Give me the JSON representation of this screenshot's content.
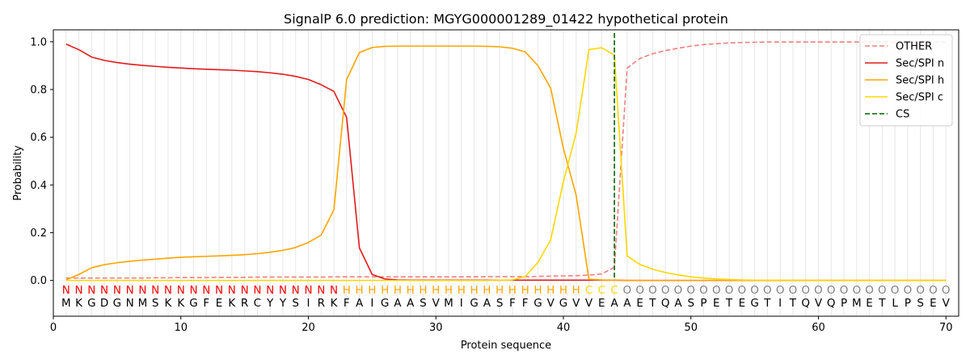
{
  "chart_data": {
    "type": "line",
    "title": "SignalP 6.0 prediction: MGYG000001289_01422 hypothetical protein",
    "xlabel": "Protein sequence",
    "ylabel": "Probability",
    "xlim": [
      0,
      71
    ],
    "ylim": [
      -0.15,
      1.05
    ],
    "xticks": [
      0,
      10,
      20,
      30,
      40,
      50,
      60,
      70
    ],
    "yticks": [
      0.0,
      0.2,
      0.4,
      0.6,
      0.8,
      1.0
    ],
    "ytick_labels": [
      "0.0",
      "0.2",
      "0.4",
      "0.6",
      "0.8",
      "1.0"
    ],
    "grid": "vertical lines at each residue position",
    "legend_position": "top-right",
    "sequence": [
      "M",
      "K",
      "G",
      "D",
      "G",
      "N",
      "M",
      "S",
      "K",
      "K",
      "G",
      "F",
      "E",
      "K",
      "R",
      "C",
      "Y",
      "Y",
      "S",
      "I",
      "R",
      "K",
      "F",
      "A",
      "I",
      "G",
      "A",
      "A",
      "S",
      "V",
      "M",
      "I",
      "G",
      "A",
      "S",
      "F",
      "F",
      "G",
      "V",
      "G",
      "V",
      "V",
      "E",
      "A",
      "A",
      "E",
      "T",
      "Q",
      "A",
      "S",
      "P",
      "E",
      "T",
      "E",
      "G",
      "T",
      "I",
      "T",
      "Q",
      "V",
      "Q",
      "P",
      "M",
      "E",
      "T",
      "L",
      "P",
      "S",
      "E",
      "V"
    ],
    "region_labels": [
      "N",
      "N",
      "N",
      "N",
      "N",
      "N",
      "N",
      "N",
      "N",
      "N",
      "N",
      "N",
      "N",
      "N",
      "N",
      "N",
      "N",
      "N",
      "N",
      "N",
      "N",
      "N",
      "H",
      "H",
      "H",
      "H",
      "H",
      "H",
      "H",
      "H",
      "H",
      "H",
      "H",
      "H",
      "H",
      "H",
      "H",
      "H",
      "H",
      "H",
      "H",
      "C",
      "C",
      "C",
      "O",
      "O",
      "O",
      "O",
      "O",
      "O",
      "O",
      "O",
      "O",
      "O",
      "O",
      "O",
      "O",
      "O",
      "O",
      "O",
      "O",
      "O",
      "O",
      "O",
      "O",
      "O",
      "O",
      "O",
      "O",
      "O"
    ],
    "region_colors": {
      "N": "#ff0000",
      "H": "#ffa500",
      "C": "#ffd700",
      "O": "#808080"
    },
    "cs_position": 44,
    "series": [
      {
        "name": "OTHER",
        "color": "#f08080",
        "style": "dashed",
        "values": [
          0.01,
          0.01,
          0.01,
          0.01,
          0.01,
          0.01,
          0.01,
          0.011,
          0.011,
          0.012,
          0.012,
          0.012,
          0.013,
          0.013,
          0.013,
          0.014,
          0.014,
          0.014,
          0.014,
          0.014,
          0.014,
          0.015,
          0.015,
          0.015,
          0.015,
          0.015,
          0.015,
          0.015,
          0.015,
          0.015,
          0.015,
          0.015,
          0.015,
          0.016,
          0.016,
          0.016,
          0.016,
          0.017,
          0.018,
          0.019,
          0.02,
          0.022,
          0.027,
          0.055,
          0.89,
          0.93,
          0.95,
          0.963,
          0.973,
          0.982,
          0.988,
          0.992,
          0.995,
          0.997,
          0.998,
          0.999,
          0.999,
          0.999,
          0.999,
          0.999,
          0.999,
          0.999,
          0.999,
          0.999,
          0.999,
          0.999,
          0.999,
          0.999,
          0.999,
          0.999
        ]
      },
      {
        "name": "Sec/SPI n",
        "color": "#e31a1c",
        "style": "solid",
        "values": [
          0.99,
          0.967,
          0.936,
          0.922,
          0.913,
          0.906,
          0.901,
          0.897,
          0.893,
          0.89,
          0.887,
          0.885,
          0.883,
          0.881,
          0.878,
          0.875,
          0.87,
          0.864,
          0.855,
          0.842,
          0.82,
          0.792,
          0.683,
          0.137,
          0.025,
          0.006,
          0.002,
          0.001,
          0.001,
          0.001,
          0.001,
          0.001,
          0.001,
          0.001,
          0.001,
          0.001,
          0.001,
          0.001,
          0.001,
          0.001,
          0.001,
          0.001,
          0.001,
          0.001,
          0.0,
          0.0,
          0.0,
          0.0,
          0.0,
          0.0,
          0.0,
          0.0,
          0.0,
          0.0,
          0.0,
          0.0,
          0.0,
          0.0,
          0.0,
          0.0,
          0.0,
          0.0,
          0.0,
          0.0,
          0.0,
          0.0,
          0.0,
          0.0,
          0.0,
          0.0
        ]
      },
      {
        "name": "Sec/SPI h",
        "color": "#ffa500",
        "style": "solid",
        "values": [
          0.002,
          0.025,
          0.053,
          0.066,
          0.074,
          0.08,
          0.085,
          0.089,
          0.093,
          0.097,
          0.099,
          0.101,
          0.103,
          0.105,
          0.108,
          0.112,
          0.118,
          0.126,
          0.138,
          0.159,
          0.19,
          0.295,
          0.842,
          0.955,
          0.976,
          0.981,
          0.982,
          0.982,
          0.982,
          0.982,
          0.982,
          0.982,
          0.982,
          0.981,
          0.979,
          0.973,
          0.958,
          0.9,
          0.806,
          0.553,
          0.357,
          0.005,
          0.002,
          0.001,
          0.0,
          0.0,
          0.0,
          0.0,
          0.0,
          0.0,
          0.0,
          0.0,
          0.0,
          0.0,
          0.0,
          0.0,
          0.0,
          0.0,
          0.0,
          0.0,
          0.0,
          0.0,
          0.0,
          0.0,
          0.0,
          0.0,
          0.0,
          0.0,
          0.0,
          0.0
        ]
      },
      {
        "name": "Sec/SPI c",
        "color": "#ffd700",
        "style": "solid",
        "values": [
          0.0,
          0.0,
          0.0,
          0.0,
          0.0,
          0.0,
          0.0,
          0.0,
          0.0,
          0.0,
          0.0,
          0.0,
          0.0,
          0.0,
          0.0,
          0.0,
          0.0,
          0.0,
          0.0,
          0.0,
          0.0,
          0.0,
          0.0,
          0.0,
          0.0,
          0.0,
          0.0,
          0.0,
          0.0,
          0.0,
          0.0,
          0.0,
          0.0,
          0.0,
          0.001,
          0.002,
          0.016,
          0.075,
          0.17,
          0.414,
          0.617,
          0.967,
          0.975,
          0.944,
          0.103,
          0.067,
          0.047,
          0.033,
          0.023,
          0.015,
          0.01,
          0.006,
          0.004,
          0.002,
          0.001,
          0.001,
          0.001,
          0.0,
          0.0,
          0.0,
          0.0,
          0.0,
          0.0,
          0.0,
          0.0,
          0.0,
          0.0,
          0.0,
          0.0,
          0.0
        ]
      },
      {
        "name": "CS",
        "color": "#006400",
        "style": "dashed",
        "values": []
      }
    ]
  }
}
